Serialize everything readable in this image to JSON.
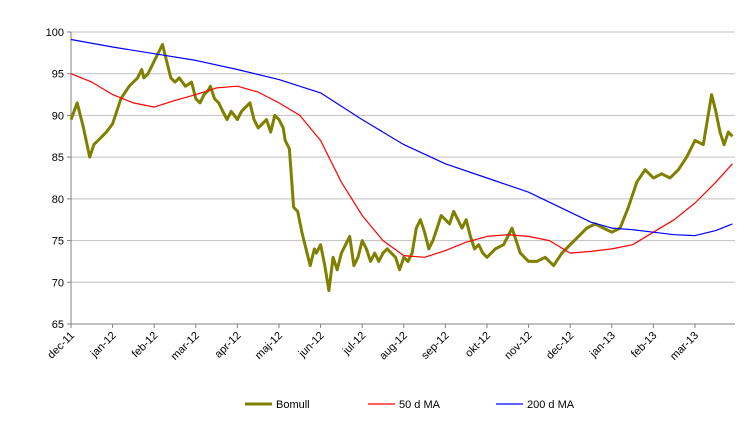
{
  "chart_data": {
    "type": "line",
    "title": "",
    "xlabel": "",
    "ylabel": "",
    "ylim": [
      65,
      100
    ],
    "yticks": [
      65,
      70,
      75,
      80,
      85,
      90,
      95,
      100
    ],
    "grid": "horizontal",
    "legend_position": "bottom",
    "x_ticks": [
      "dec-11",
      "jan-12",
      "feb-12",
      "mar-12",
      "apr-12",
      "maj-12",
      "jun-12",
      "jul-12",
      "aug-12",
      "sep-12",
      "okt-12",
      "nov-12",
      "dec-12",
      "jan-13",
      "feb-13",
      "mar-13"
    ],
    "x_range": [
      0,
      15.9
    ],
    "series": [
      {
        "name": "Bomull",
        "color": "#808000",
        "x": [
          0,
          0.15,
          0.3,
          0.45,
          0.55,
          0.65,
          0.75,
          0.85,
          1.0,
          1.2,
          1.4,
          1.6,
          1.7,
          1.75,
          1.85,
          2.0,
          2.2,
          2.4,
          2.5,
          2.6,
          2.75,
          2.9,
          3.0,
          3.1,
          3.2,
          3.3,
          3.35,
          3.45,
          3.55,
          3.65,
          3.75,
          3.85,
          4.0,
          4.1,
          4.2,
          4.3,
          4.4,
          4.5,
          4.6,
          4.7,
          4.8,
          4.9,
          5.0,
          5.1,
          5.15,
          5.25,
          5.35,
          5.45,
          5.55,
          5.65,
          5.75,
          5.85,
          5.9,
          6.0,
          6.1,
          6.2,
          6.3,
          6.4,
          6.5,
          6.6,
          6.7,
          6.8,
          6.9,
          7.0,
          7.1,
          7.2,
          7.3,
          7.4,
          7.5,
          7.6,
          7.7,
          7.8,
          7.9,
          8.0,
          8.1,
          8.2,
          8.3,
          8.4,
          8.5,
          8.6,
          8.7,
          8.8,
          8.9,
          9.0,
          9.1,
          9.2,
          9.3,
          9.4,
          9.5,
          9.6,
          9.7,
          9.8,
          9.9,
          10.0,
          10.2,
          10.4,
          10.6,
          10.8,
          11.0,
          11.2,
          11.4,
          11.6,
          11.8,
          12.0,
          12.2,
          12.4,
          12.6,
          12.8,
          13.0,
          13.2,
          13.4,
          13.6,
          13.8,
          14.0,
          14.2,
          14.4,
          14.6,
          14.8,
          15.0,
          15.2,
          15.4,
          15.5,
          15.6,
          15.7,
          15.8,
          15.9
        ],
        "values": [
          89.5,
          91.5,
          88.5,
          85.0,
          86.5,
          87.0,
          87.5,
          88.0,
          89.0,
          92.0,
          93.5,
          94.5,
          95.5,
          94.5,
          95.0,
          96.5,
          98.5,
          94.5,
          94.0,
          94.5,
          93.5,
          94.0,
          92.0,
          91.5,
          92.5,
          93.0,
          93.5,
          92.0,
          91.5,
          90.5,
          89.5,
          90.5,
          89.5,
          90.5,
          91.0,
          91.5,
          89.5,
          88.5,
          89.0,
          89.5,
          88.0,
          90.0,
          89.5,
          88.5,
          87.0,
          86.0,
          79.0,
          78.5,
          76.0,
          74.0,
          72.0,
          74.0,
          73.5,
          74.5,
          72.0,
          69.0,
          73.0,
          71.5,
          73.5,
          74.5,
          75.5,
          72.0,
          73.0,
          75.0,
          74.0,
          72.5,
          73.5,
          72.5,
          73.5,
          74.0,
          73.5,
          73.0,
          71.5,
          73.0,
          72.5,
          73.5,
          76.5,
          77.5,
          76.0,
          74.0,
          75.0,
          76.5,
          78.0,
          77.5,
          77.0,
          78.5,
          77.5,
          76.5,
          77.5,
          75.5,
          74.0,
          74.5,
          73.5,
          73.0,
          74.0,
          74.5,
          76.5,
          73.5,
          72.5,
          72.5,
          73.0,
          72.0,
          73.5,
          74.5,
          75.5,
          76.5,
          77.0,
          76.5,
          76.0,
          76.5,
          79.0,
          82.0,
          83.5,
          82.5,
          83.0,
          82.5,
          83.5,
          85.0,
          87.0,
          86.5,
          92.5,
          90.5,
          88.0,
          86.5,
          88.0,
          87.5
        ]
      },
      {
        "name": "50 d MA",
        "color": "#ff0000",
        "x": [
          0,
          0.5,
          1.0,
          1.5,
          2.0,
          2.5,
          3.0,
          3.5,
          4.0,
          4.5,
          5.0,
          5.5,
          6.0,
          6.5,
          7.0,
          7.5,
          8.0,
          8.5,
          9.0,
          9.5,
          10.0,
          10.5,
          11.0,
          11.5,
          12.0,
          12.5,
          13.0,
          13.5,
          14.0,
          14.5,
          15.0,
          15.5,
          15.9
        ],
        "values": [
          95.0,
          94.0,
          92.5,
          91.5,
          91.0,
          91.8,
          92.5,
          93.3,
          93.5,
          92.8,
          91.5,
          90.0,
          87.0,
          82.0,
          78.0,
          75.0,
          73.2,
          73.0,
          73.8,
          74.8,
          75.5,
          75.7,
          75.5,
          75.0,
          73.5,
          73.7,
          74.0,
          74.5,
          76.0,
          77.5,
          79.5,
          82.0,
          84.2
        ]
      },
      {
        "name": "200 d MA",
        "color": "#0000ff",
        "x": [
          0,
          1.0,
          2.0,
          3.0,
          4.0,
          5.0,
          6.0,
          7.0,
          8.0,
          9.0,
          10.0,
          11.0,
          12.0,
          12.5,
          13.0,
          13.5,
          14.0,
          14.5,
          15.0,
          15.5,
          15.9
        ],
        "values": [
          99.1,
          98.2,
          97.4,
          96.6,
          95.5,
          94.3,
          92.7,
          89.5,
          86.5,
          84.2,
          82.5,
          80.8,
          78.4,
          77.2,
          76.5,
          76.3,
          76.0,
          75.7,
          75.6,
          76.2,
          77.0
        ]
      }
    ]
  }
}
